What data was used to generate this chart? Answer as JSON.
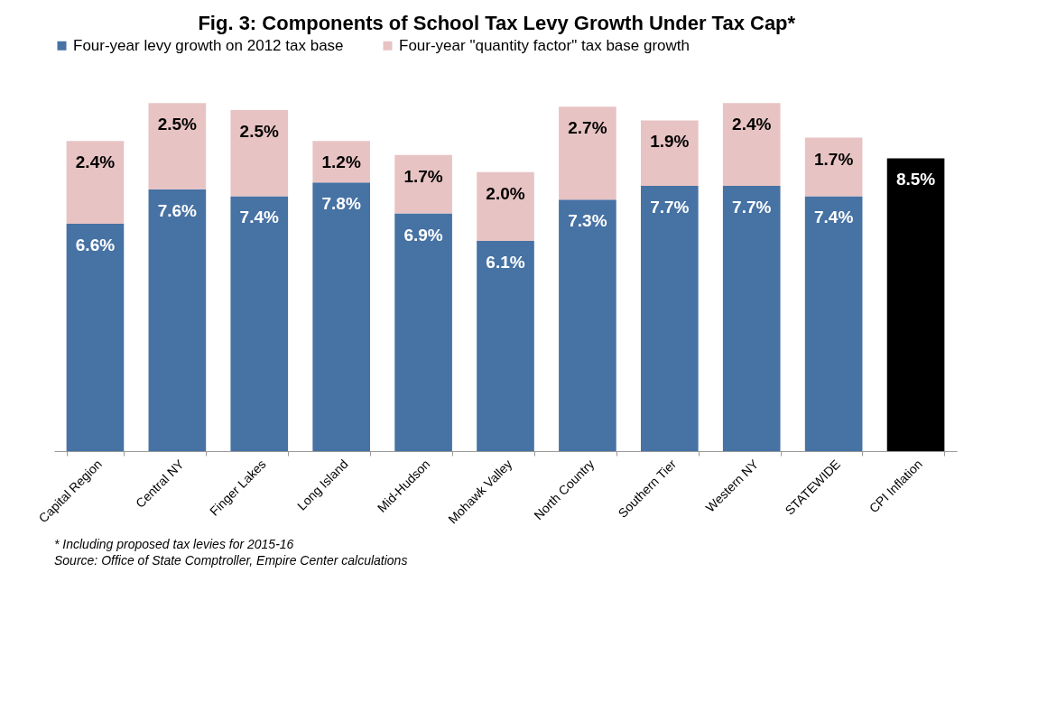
{
  "chart_data": {
    "type": "bar",
    "stacked": true,
    "title": "Fig. 3: Components of School Tax Levy Growth Under Tax Cap*",
    "categories": [
      "Capital Region",
      "Central NY",
      "Finger Lakes",
      "Long Island",
      "Mid-Hudson",
      "Mohawk Valley",
      "North Country",
      "Southern Tier",
      "Western NY",
      "STATEWIDE",
      "CPI Inflation"
    ],
    "series": [
      {
        "name": "Four-year levy growth on 2012 tax base",
        "color": "#4672a4",
        "colors": [
          "#4672a4",
          "#4672a4",
          "#4672a4",
          "#4672a4",
          "#4672a4",
          "#4672a4",
          "#4672a4",
          "#4672a4",
          "#4672a4",
          "#4672a4",
          "#000000"
        ],
        "values": [
          6.6,
          7.6,
          7.4,
          7.8,
          6.9,
          6.1,
          7.3,
          7.7,
          7.7,
          7.4,
          8.5
        ],
        "value_labels": [
          "6.6%",
          "7.6%",
          "7.4%",
          "7.8%",
          "6.9%",
          "6.1%",
          "7.3%",
          "7.7%",
          "7.7%",
          "7.4%",
          "8.5%"
        ]
      },
      {
        "name": "Four-year \"quantity factor\" tax base growth",
        "color": "#e8c3c3",
        "values": [
          2.4,
          2.5,
          2.5,
          1.2,
          1.7,
          2.0,
          2.7,
          1.9,
          2.4,
          1.7,
          null
        ],
        "value_labels": [
          "2.4%",
          "2.5%",
          "2.5%",
          "1.2%",
          "1.7%",
          "2.0%",
          "2.7%",
          "1.9%",
          "2.4%",
          "1.7%",
          null
        ]
      }
    ],
    "legend": "top",
    "grid": false,
    "annotations": [
      "* Including proposed tax levies for 2015-16",
      "Source: Office of State Comptroller, Empire Center calculations"
    ]
  }
}
